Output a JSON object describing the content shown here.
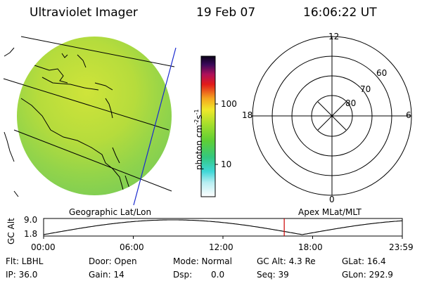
{
  "header": {
    "instrument": "Ultraviolet Imager",
    "date": "19 Feb 07",
    "time": "16:06:22 UT"
  },
  "colorbar": {
    "unit_prefix": "photon cm",
    "exp1": "-2",
    "mid": "s",
    "exp2": "-1",
    "tick_100": "100",
    "tick_10": "10"
  },
  "map_panel": {
    "label": "Geographic Lat/Lon"
  },
  "polar_panel": {
    "label": "Apex MLat/MLT",
    "mlt_labels": {
      "top": "12",
      "left": "18",
      "right": "6",
      "bottom": "0"
    },
    "mlat_labels": [
      "60",
      "70",
      "80"
    ]
  },
  "altitude_plot": {
    "ylabel": "GC Alt",
    "ytick_high": "9.0",
    "ytick_low": "1.8",
    "xticks": [
      "00:00",
      "06:00",
      "12:00",
      "18:00",
      "23:59"
    ],
    "current_time_hours": 16.1,
    "marker_color": "#cc0000"
  },
  "status": {
    "filter": "Flt: LBHL",
    "door": "Door: Open",
    "mode": "Mode: Normal",
    "gc_alt": "GC Alt: 4.3 Re",
    "glat": "GLat: 16.4",
    "ip": "IP: 36.0",
    "gain": "Gain: 14",
    "dsp": "Dsp:",
    "dsp_value": "0.0",
    "seq": "Seq: 39",
    "glon": "GLon: 292.9"
  },
  "colors": {
    "image_green": "#8ed24a",
    "image_yellow": "#c8e23a",
    "track_line": "#1a2ad0"
  }
}
